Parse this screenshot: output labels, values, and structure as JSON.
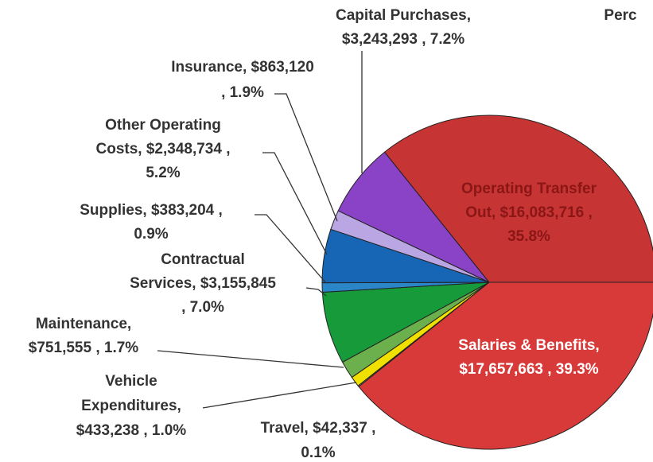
{
  "chart_data": {
    "type": "pie",
    "title": "Perc",
    "categories": [
      "Salaries & Benefits",
      "Travel",
      "Vehicle Expenditures",
      "Maintenance",
      "Contractual Services",
      "Supplies",
      "Other Operating Costs",
      "Insurance",
      "Capital Purchases",
      "Operating Transfer Out"
    ],
    "values": [
      39.3,
      0.1,
      1.0,
      1.7,
      7.0,
      0.9,
      5.2,
      1.9,
      7.2,
      35.8
    ],
    "colors": [
      "#d83a3a",
      "#f2e86a",
      "#f0e000",
      "#6cb04e",
      "#169a3a",
      "#2b86c8",
      "#1766b5",
      "#b9a6e2",
      "#8a42c6",
      "#c73434"
    ],
    "labels": [
      [
        "Salaries & Benefits,",
        "$17,657,663 , 39.3%"
      ],
      [
        "Travel, $42,337 ,",
        "0.1%"
      ],
      [
        "Vehicle",
        "Expenditures,",
        "$433,238 , 1.0%"
      ],
      [
        "Maintenance,",
        "$751,555 , 1.7%"
      ],
      [
        "Contractual",
        "Services, $3,155,845",
        ", 7.0%"
      ],
      [
        "Supplies, $383,204 ,",
        "0.9%"
      ],
      [
        "Other Operating",
        "Costs, $2,348,734 ,",
        "5.2%"
      ],
      [
        "Insurance, $863,120",
        ", 1.9%"
      ],
      [
        "Capital Purchases,",
        "$3,243,293 , 7.2%"
      ],
      [
        "Operating Transfer",
        "Out, $16,083,716 ,",
        "35.8%"
      ]
    ]
  }
}
